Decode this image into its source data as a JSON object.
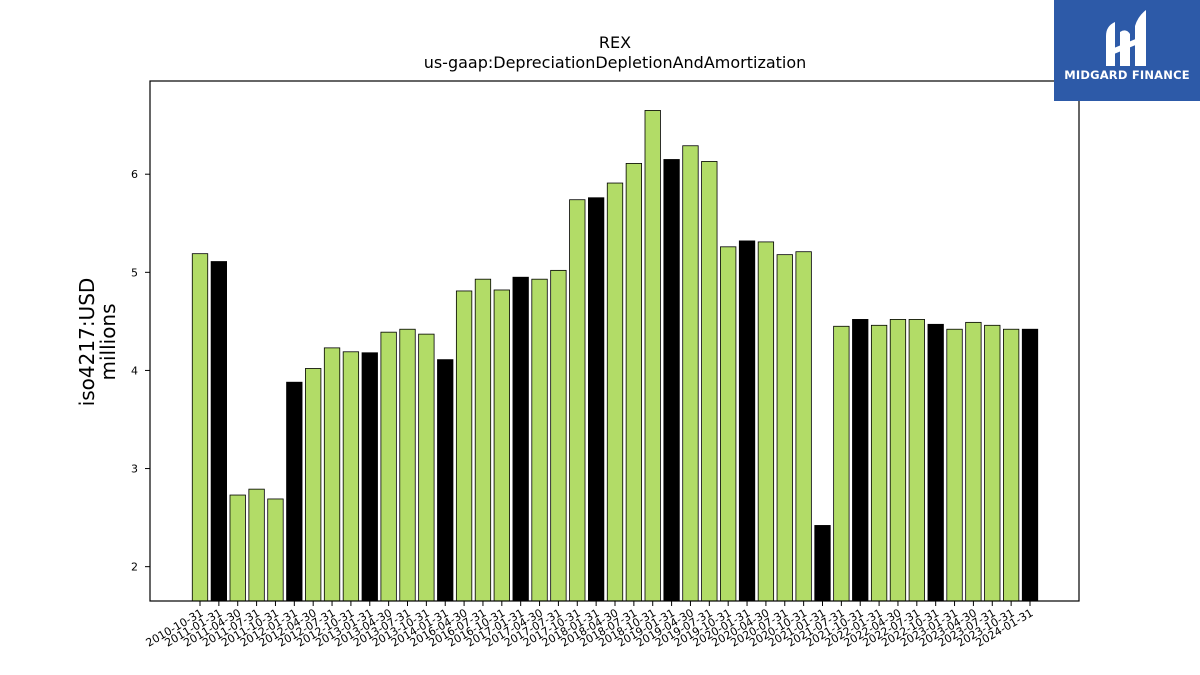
{
  "brand": {
    "name": "MIDGARD FINANCE",
    "bg_color": "#2d5aa8",
    "icon": "midgard-logo-icon"
  },
  "chart_data": {
    "type": "bar",
    "title": "REX",
    "subtitle": "us-gaap:DepreciationDepletionAndAmortization",
    "ylabel": "iso4217:USD",
    "ylabel2": "millions",
    "xlabel": "",
    "ylim": [
      1.65,
      6.95
    ],
    "yticks": [
      2,
      3,
      4,
      5,
      6
    ],
    "grid": false,
    "colors": {
      "quarter": "#b2dc67",
      "fiscal_q4": "#000000"
    },
    "categories": [
      "2010-10-31",
      "2011-01-31",
      "2011-04-30",
      "2011-07-31",
      "2011-10-31",
      "2012-01-31",
      "2012-04-30",
      "2012-07-31",
      "2012-10-31",
      "2013-01-31",
      "2013-04-30",
      "2013-07-31",
      "2013-10-31",
      "2014-01-31",
      "2016-04-30",
      "2016-07-31",
      "2016-10-31",
      "2017-01-31",
      "2017-04-30",
      "2017-07-31",
      "2017-10-31",
      "2018-01-31",
      "2018-04-30",
      "2018-07-31",
      "2018-10-31",
      "2019-01-31",
      "2019-04-30",
      "2019-07-31",
      "2019-10-31",
      "2020-01-31",
      "2020-04-30",
      "2020-07-31",
      "2020-10-31",
      "2021-01-31",
      "2021-07-31",
      "2021-10-31",
      "2022-01-31",
      "2022-04-30",
      "2022-07-31",
      "2022-10-31",
      "2023-01-31",
      "2023-04-30",
      "2023-07-31",
      "2023-10-31",
      "2024-01-31"
    ],
    "values": [
      5.19,
      5.11,
      2.73,
      2.79,
      2.69,
      3.88,
      4.02,
      4.23,
      4.19,
      4.18,
      4.39,
      4.42,
      4.37,
      4.11,
      4.81,
      4.93,
      4.82,
      4.95,
      4.93,
      5.02,
      5.74,
      5.76,
      5.91,
      6.11,
      6.65,
      6.15,
      6.29,
      6.13,
      5.26,
      5.32,
      5.31,
      5.18,
      5.21,
      2.42,
      4.45,
      4.52,
      4.46,
      4.52,
      4.52,
      4.47,
      4.42,
      4.49,
      4.46,
      4.42,
      4.42
    ],
    "bar_type": [
      "quarter",
      "fiscal_q4",
      "quarter",
      "quarter",
      "quarter",
      "fiscal_q4",
      "quarter",
      "quarter",
      "quarter",
      "fiscal_q4",
      "quarter",
      "quarter",
      "quarter",
      "fiscal_q4",
      "quarter",
      "quarter",
      "quarter",
      "fiscal_q4",
      "quarter",
      "quarter",
      "quarter",
      "fiscal_q4",
      "quarter",
      "quarter",
      "quarter",
      "fiscal_q4",
      "quarter",
      "quarter",
      "quarter",
      "fiscal_q4",
      "quarter",
      "quarter",
      "quarter",
      "fiscal_q4",
      "quarter",
      "fiscal_q4",
      "quarter",
      "quarter",
      "quarter",
      "fiscal_q4",
      "quarter",
      "quarter",
      "quarter",
      "quarter",
      "fiscal_q4"
    ]
  }
}
